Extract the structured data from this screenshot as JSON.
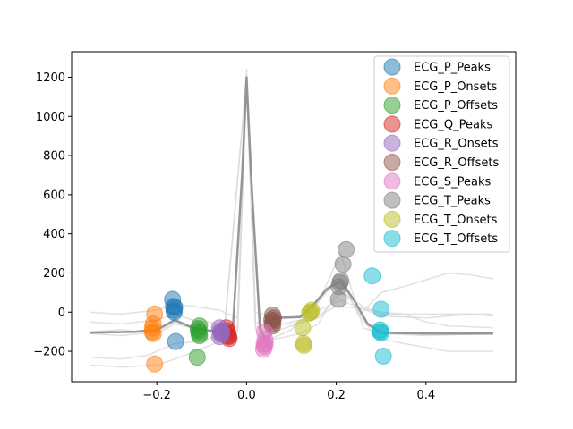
{
  "chart_data": {
    "type": "line",
    "title": "",
    "xlabel": "",
    "ylabel": "",
    "xlim": [
      -0.39,
      0.6
    ],
    "ylim": [
      -355,
      1330
    ],
    "xticks": [
      -0.2,
      0.0,
      0.2,
      0.4
    ],
    "xtick_labels": [
      "−0.2",
      "0.0",
      "0.2",
      "0.4"
    ],
    "yticks": [
      -200,
      0,
      200,
      400,
      600,
      800,
      1000,
      1200
    ],
    "ytick_labels": [
      "−200",
      "0",
      "200",
      "400",
      "600",
      "800",
      "1000",
      "1200"
    ],
    "grid": false,
    "legend_position": "top-right",
    "background_traces": [
      {
        "color": "#d9d9d9",
        "values": [
          [
            -0.35,
            -270
          ],
          [
            -0.28,
            -280
          ],
          [
            -0.2,
            -270
          ],
          [
            -0.16,
            -240
          ],
          [
            -0.12,
            -205
          ],
          [
            -0.06,
            -150
          ],
          [
            -0.02,
            -100
          ],
          [
            0.0,
            1160
          ],
          [
            0.02,
            -50
          ],
          [
            0.05,
            -80
          ],
          [
            0.1,
            -50
          ],
          [
            0.16,
            -20
          ],
          [
            0.2,
            30
          ],
          [
            0.25,
            20
          ],
          [
            0.3,
            0
          ],
          [
            0.35,
            -10
          ],
          [
            0.4,
            -50
          ],
          [
            0.45,
            -70
          ],
          [
            0.55,
            -80
          ]
        ]
      },
      {
        "color": "#d9d9d9",
        "values": [
          [
            -0.35,
            0
          ],
          [
            -0.28,
            -10
          ],
          [
            -0.2,
            10
          ],
          [
            -0.16,
            40
          ],
          [
            -0.12,
            30
          ],
          [
            -0.06,
            10
          ],
          [
            -0.02,
            -30
          ],
          [
            0.0,
            1240
          ],
          [
            0.02,
            0
          ],
          [
            0.05,
            -20
          ],
          [
            0.1,
            -30
          ],
          [
            0.16,
            10
          ],
          [
            0.21,
            60
          ],
          [
            0.3,
            -20
          ],
          [
            0.4,
            -30
          ],
          [
            0.5,
            -10
          ],
          [
            0.55,
            -20
          ]
        ]
      },
      {
        "color": "#d9d9d9",
        "values": [
          [
            -0.35,
            -50
          ],
          [
            -0.28,
            -60
          ],
          [
            -0.2,
            -40
          ],
          [
            -0.16,
            -10
          ],
          [
            -0.12,
            -40
          ],
          [
            -0.06,
            -60
          ],
          [
            -0.02,
            -80
          ],
          [
            0.0,
            1180
          ],
          [
            0.02,
            -70
          ],
          [
            0.05,
            -110
          ],
          [
            0.1,
            -70
          ],
          [
            0.16,
            -30
          ],
          [
            0.21,
            100
          ],
          [
            0.26,
            30
          ],
          [
            0.3,
            -10
          ],
          [
            0.4,
            -10
          ],
          [
            0.55,
            -10
          ]
        ]
      },
      {
        "color": "#d9d9d9",
        "values": [
          [
            -0.35,
            -110
          ],
          [
            -0.28,
            -120
          ],
          [
            -0.2,
            -100
          ],
          [
            -0.16,
            -50
          ],
          [
            -0.12,
            -80
          ],
          [
            -0.06,
            -100
          ],
          [
            -0.02,
            -90
          ],
          [
            0.0,
            1200
          ],
          [
            0.02,
            -90
          ],
          [
            0.05,
            -140
          ],
          [
            0.1,
            -90
          ],
          [
            0.16,
            50
          ],
          [
            0.21,
            300
          ],
          [
            0.26,
            -80
          ],
          [
            0.3,
            -110
          ],
          [
            0.4,
            -120
          ],
          [
            0.55,
            -110
          ]
        ]
      },
      {
        "color": "#d9d9d9",
        "values": [
          [
            -0.35,
            -100
          ],
          [
            -0.28,
            -90
          ],
          [
            -0.2,
            -110
          ],
          [
            -0.16,
            -60
          ],
          [
            -0.1,
            -90
          ],
          [
            -0.05,
            -120
          ],
          [
            0.0,
            1210
          ],
          [
            0.03,
            -130
          ],
          [
            0.06,
            -60
          ],
          [
            0.12,
            -60
          ],
          [
            0.17,
            80
          ],
          [
            0.21,
            180
          ],
          [
            0.25,
            -20
          ],
          [
            0.3,
            100
          ],
          [
            0.35,
            130
          ],
          [
            0.45,
            200
          ],
          [
            0.5,
            190
          ],
          [
            0.55,
            170
          ]
        ]
      },
      {
        "color": "#d9d9d9",
        "values": [
          [
            -0.35,
            -230
          ],
          [
            -0.28,
            -240
          ],
          [
            -0.22,
            -220
          ],
          [
            -0.16,
            -160
          ],
          [
            -0.1,
            -150
          ],
          [
            -0.05,
            -100
          ],
          [
            0.0,
            1190
          ],
          [
            0.03,
            -150
          ],
          [
            0.08,
            -130
          ],
          [
            0.12,
            -110
          ],
          [
            0.16,
            -60
          ],
          [
            0.21,
            140
          ],
          [
            0.26,
            -40
          ],
          [
            0.29,
            -130
          ],
          [
            0.35,
            -160
          ],
          [
            0.45,
            -200
          ],
          [
            0.55,
            -200
          ]
        ]
      }
    ],
    "mean_trace": {
      "color": "#8c8c8c",
      "values": [
        [
          -0.35,
          -105
        ],
        [
          -0.25,
          -100
        ],
        [
          -0.2,
          -90
        ],
        [
          -0.16,
          -40
        ],
        [
          -0.12,
          -80
        ],
        [
          -0.08,
          -95
        ],
        [
          -0.05,
          -110
        ],
        [
          -0.03,
          -60
        ],
        [
          -0.01,
          700
        ],
        [
          0.0,
          1200
        ],
        [
          0.01,
          700
        ],
        [
          0.03,
          -80
        ],
        [
          0.045,
          -160
        ],
        [
          0.06,
          -30
        ],
        [
          0.12,
          -25
        ],
        [
          0.15,
          40
        ],
        [
          0.18,
          120
        ],
        [
          0.21,
          160
        ],
        [
          0.24,
          60
        ],
        [
          0.27,
          -60
        ],
        [
          0.3,
          -105
        ],
        [
          0.4,
          -110
        ],
        [
          0.55,
          -110
        ]
      ]
    },
    "series": [
      {
        "name": "ECG_P_Peaks",
        "color": "#1f77b4",
        "points": [
          [
            -0.165,
            65
          ],
          [
            -0.163,
            30
          ],
          [
            -0.162,
            10
          ],
          [
            -0.161,
            0
          ],
          [
            -0.16,
            25
          ],
          [
            -0.158,
            -150
          ]
        ]
      },
      {
        "name": "ECG_P_Onsets",
        "color": "#ff7f0e",
        "points": [
          [
            -0.205,
            -10
          ],
          [
            -0.208,
            -60
          ],
          [
            -0.21,
            -80
          ],
          [
            -0.21,
            -100
          ],
          [
            -0.208,
            -110
          ],
          [
            -0.205,
            -265
          ]
        ]
      },
      {
        "name": "ECG_P_Offsets",
        "color": "#2ca02c",
        "points": [
          [
            -0.105,
            -70
          ],
          [
            -0.108,
            -85
          ],
          [
            -0.107,
            -95
          ],
          [
            -0.106,
            -110
          ],
          [
            -0.105,
            -120
          ],
          [
            -0.11,
            -230
          ]
        ]
      },
      {
        "name": "ECG_Q_Peaks",
        "color": "#d62728",
        "points": [
          [
            -0.045,
            -80
          ],
          [
            -0.043,
            -95
          ],
          [
            -0.042,
            -110
          ],
          [
            -0.041,
            -120
          ],
          [
            -0.04,
            -125
          ],
          [
            -0.039,
            -135
          ]
        ]
      },
      {
        "name": "ECG_R_Onsets",
        "color": "#9467bd",
        "points": [
          [
            -0.06,
            -80
          ],
          [
            -0.058,
            -95
          ],
          [
            -0.057,
            -105
          ],
          [
            -0.056,
            -115
          ],
          [
            -0.06,
            -125
          ],
          [
            -0.055,
            -100
          ]
        ]
      },
      {
        "name": "ECG_R_Offsets",
        "color": "#8c564b",
        "points": [
          [
            0.058,
            -15
          ],
          [
            0.06,
            -30
          ],
          [
            0.059,
            -45
          ],
          [
            0.057,
            -60
          ],
          [
            0.058,
            -70
          ],
          [
            0.056,
            -40
          ]
        ]
      },
      {
        "name": "ECG_S_Peaks",
        "color": "#e377c2",
        "points": [
          [
            0.04,
            -100
          ],
          [
            0.041,
            -140
          ],
          [
            0.042,
            -160
          ],
          [
            0.04,
            -175
          ],
          [
            0.038,
            -190
          ],
          [
            0.039,
            -165
          ]
        ]
      },
      {
        "name": "ECG_T_Peaks",
        "color": "#7f7f7f",
        "points": [
          [
            0.222,
            320
          ],
          [
            0.215,
            245
          ],
          [
            0.21,
            160
          ],
          [
            0.208,
            150
          ],
          [
            0.206,
            130
          ],
          [
            0.205,
            65
          ]
        ]
      },
      {
        "name": "ECG_T_Onsets",
        "color": "#bcbd22",
        "points": [
          [
            0.145,
            10
          ],
          [
            0.143,
            0
          ],
          [
            0.14,
            -5
          ],
          [
            0.125,
            -80
          ],
          [
            0.127,
            -160
          ],
          [
            0.128,
            -170
          ]
        ]
      },
      {
        "name": "ECG_T_Offsets",
        "color": "#17becf",
        "points": [
          [
            0.28,
            185
          ],
          [
            0.3,
            15
          ],
          [
            0.298,
            -90
          ],
          [
            0.297,
            -100
          ],
          [
            0.3,
            -105
          ],
          [
            0.305,
            -225
          ]
        ]
      }
    ]
  }
}
